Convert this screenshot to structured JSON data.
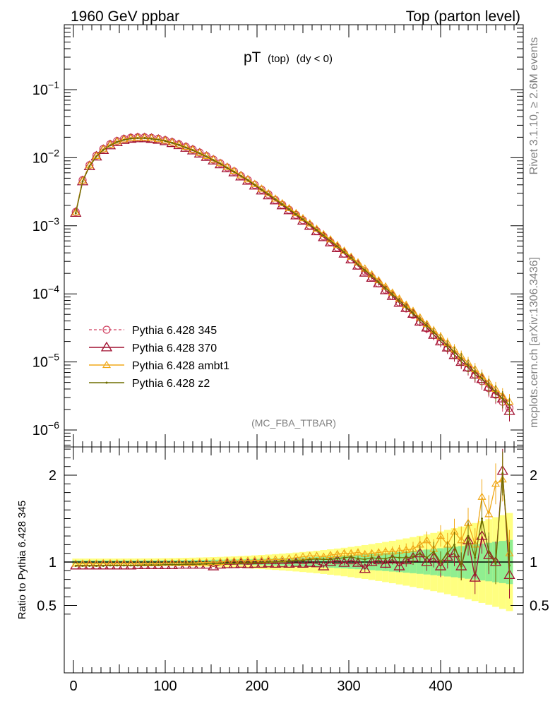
{
  "header": {
    "left": "1960 GeV ppbar",
    "right": "Top (parton level)"
  },
  "plot_title": {
    "main": "pT",
    "sub1": "(top)",
    "sub2": "(dy < 0)"
  },
  "side_labels": {
    "rivet": "Rivet 3.1.10, ≥ 2.6M events",
    "mcplots": "mcplots.cern.ch [arXiv:1306.3436]"
  },
  "analysis_tag": "(MC_FBA_TTBAR)",
  "colors": {
    "p345": "#d04060",
    "p370": "#a01030",
    "ambt1": "#f0a818",
    "z2": "#6e6e00",
    "band_yellow": "#ffff80",
    "band_green": "#90ee90"
  },
  "chart_data": [
    {
      "type": "scatter",
      "panel": "main",
      "log_y": true,
      "xlim": [
        -10,
        490
      ],
      "ylim": [
        5e-07,
        1
      ],
      "y_ticks": [
        "10^-6",
        "10^-5",
        "10^-4",
        "10^-3",
        "10^-2",
        "10^-1"
      ],
      "legend_placement": "bottom-left",
      "x": [
        2.5,
        10,
        17.5,
        25,
        32.5,
        40,
        47.5,
        55,
        62.5,
        70,
        77.5,
        85,
        92.5,
        100,
        107.5,
        115,
        122.5,
        130,
        137.5,
        145,
        152.5,
        160,
        167.5,
        175,
        182.5,
        190,
        197.5,
        205,
        212.5,
        220,
        227.5,
        235,
        242.5,
        250,
        257.5,
        265,
        272.5,
        280,
        287.5,
        295,
        302.5,
        310,
        317.5,
        325,
        332.5,
        340,
        347.5,
        355,
        362.5,
        370,
        377.5,
        385,
        392.5,
        400,
        407.5,
        415,
        422.5,
        430,
        437.5,
        445,
        452.5,
        460,
        467.5,
        475
      ],
      "series": [
        {
          "name": "Pythia 6.428 345",
          "values": [
            0.0016,
            0.0047,
            0.0078,
            0.0108,
            0.0135,
            0.0158,
            0.0176,
            0.0189,
            0.0197,
            0.02,
            0.02,
            0.0196,
            0.019,
            0.0181,
            0.017,
            0.0158,
            0.0145,
            0.0132,
            0.0119,
            0.0106,
            0.0094,
            0.0083,
            0.0072,
            0.0063,
            0.0054,
            0.0047,
            0.004,
            0.0034,
            0.0029,
            0.0024,
            0.00204,
            0.00172,
            0.00145,
            0.00121,
            0.00101,
            0.00084,
            0.0007,
            0.00058,
            0.00048,
            0.00039,
            0.00032,
            0.00026,
            0.000215,
            0.000175,
            0.000142,
            0.000115,
            9.3e-05,
            7.5e-05,
            6.1e-05,
            4.9e-05,
            3.9e-05,
            3.1e-05,
            2.5e-05,
            2e-05,
            1.6e-05,
            1.28e-05,
            1.02e-05,
            8.1e-06,
            6.5e-06,
            5.2e-06,
            4.1e-06,
            3.3e-06,
            2.6e-06,
            2.1e-06
          ]
        },
        {
          "name": "Pythia 6.428 370",
          "values": [
            0.00155,
            0.0045,
            0.0075,
            0.0104,
            0.013,
            0.0152,
            0.0169,
            0.0182,
            0.019,
            0.0193,
            0.0193,
            0.0189,
            0.0183,
            0.0175,
            0.0164,
            0.0153,
            0.014,
            0.0128,
            0.0115,
            0.0103,
            0.0091,
            0.008,
            0.007,
            0.0061,
            0.0053,
            0.0046,
            0.0039,
            0.0033,
            0.0028,
            0.00236,
            0.002,
            0.00169,
            0.00142,
            0.00119,
            0.001,
            0.00083,
            0.00068,
            0.00057,
            0.00047,
            0.00039,
            0.00032,
            0.00026,
            0.000205,
            0.000172,
            0.000143,
            0.000113,
            9.3e-05,
            7.4e-05,
            6.2e-05,
            5.1e-05,
            3.9e-05,
            3.2e-05,
            2.5e-05,
            2e-05,
            1.63e-05,
            1.26e-05,
            1e-05,
            8.3e-06,
            6.5e-06,
            5.6e-06,
            4.3e-06,
            3.4e-06,
            2.9e-06,
            1.9e-06
          ]
        },
        {
          "name": "Pythia 6.428 ambt1",
          "values": [
            0.00157,
            0.0046,
            0.0077,
            0.0106,
            0.0133,
            0.0155,
            0.0173,
            0.0186,
            0.0194,
            0.0197,
            0.0197,
            0.0193,
            0.0187,
            0.0179,
            0.0168,
            0.0156,
            0.0144,
            0.0131,
            0.0118,
            0.0106,
            0.0094,
            0.0083,
            0.0073,
            0.0064,
            0.0055,
            0.0048,
            0.0041,
            0.0035,
            0.003,
            0.0025,
            0.00214,
            0.00181,
            0.00153,
            0.00129,
            0.00108,
            0.0009,
            0.00075,
            0.00063,
            0.00052,
            0.00043,
            0.00035,
            0.00029,
            0.000235,
            0.000193,
            0.000158,
            0.000128,
            0.000104,
            8.5e-05,
            6.9e-05,
            5.6e-05,
            4.5e-05,
            3.6e-05,
            2.9e-05,
            2.35e-05,
            1.9e-05,
            1.52e-05,
            1.21e-05,
            9.7e-06,
            7.8e-06,
            6.2e-06,
            5e-06,
            4e-06,
            3.2e-06,
            2.6e-06
          ]
        },
        {
          "name": "Pythia 6.428 z2",
          "values": [
            0.00153,
            0.0045,
            0.0075,
            0.0104,
            0.013,
            0.0152,
            0.017,
            0.0183,
            0.0191,
            0.0194,
            0.0194,
            0.019,
            0.0184,
            0.0176,
            0.0165,
            0.0154,
            0.0141,
            0.0129,
            0.0116,
            0.0104,
            0.0092,
            0.0082,
            0.0071,
            0.0062,
            0.0054,
            0.0047,
            0.004,
            0.0034,
            0.0029,
            0.00245,
            0.00207,
            0.00175,
            0.00148,
            0.00124,
            0.00104,
            0.00087,
            0.00072,
            0.0006,
            0.0005,
            0.00041,
            0.00034,
            0.00027,
            0.000222,
            0.000183,
            0.000148,
            0.000121,
            9.8e-05,
            7.9e-05,
            6.4e-05,
            5.2e-05,
            4.2e-05,
            3.4e-05,
            2.7e-05,
            2.16e-05,
            1.74e-05,
            1.39e-05,
            1.11e-05,
            8.8e-06,
            7e-06,
            5.7e-06,
            4.5e-06,
            3.6e-06,
            2.9e-06,
            2.3e-06
          ]
        }
      ]
    },
    {
      "type": "scatter",
      "panel": "ratio",
      "ylabel": "Ratio to Pythia 6.428 345",
      "xlim": [
        -10,
        490
      ],
      "ylim": [
        0.35,
        2.35
      ],
      "x_ticks": [
        0,
        100,
        200,
        300,
        400
      ],
      "y_ticks": [
        0.5,
        1,
        2
      ],
      "reference_line": 1,
      "x": [
        2.5,
        10,
        17.5,
        25,
        32.5,
        40,
        47.5,
        55,
        62.5,
        70,
        77.5,
        85,
        92.5,
        100,
        107.5,
        115,
        122.5,
        130,
        137.5,
        145,
        152.5,
        160,
        167.5,
        175,
        182.5,
        190,
        197.5,
        205,
        212.5,
        220,
        227.5,
        235,
        242.5,
        250,
        257.5,
        265,
        272.5,
        280,
        287.5,
        295,
        302.5,
        310,
        317.5,
        325,
        332.5,
        340,
        347.5,
        355,
        362.5,
        370,
        377.5,
        385,
        392.5,
        400,
        407.5,
        415,
        422.5,
        430,
        437.5,
        445,
        452.5,
        460,
        467.5,
        475
      ],
      "series": [
        {
          "name": "Pythia 6.428 370",
          "values": [
            0.96,
            0.96,
            0.96,
            0.96,
            0.96,
            0.96,
            0.96,
            0.96,
            0.96,
            0.965,
            0.965,
            0.965,
            0.965,
            0.965,
            0.965,
            0.97,
            0.97,
            0.97,
            0.97,
            0.97,
            0.95,
            0.97,
            0.975,
            0.975,
            0.98,
            0.975,
            0.98,
            0.98,
            0.985,
            0.98,
            0.985,
            0.98,
            0.99,
            0.98,
            0.99,
            0.985,
            0.95,
            1.0,
            1.02,
            0.99,
            1.02,
            0.99,
            0.92,
            1.0,
            1.02,
            0.98,
            1.03,
            0.95,
            1.02,
            1.05,
            1.1,
            1.0,
            1.05,
            0.95,
            1.06,
            1.1,
            0.95,
            1.25,
            0.82,
            1.3,
            1.08,
            1.0,
            2.05,
            0.85
          ]
        },
        {
          "name": "Pythia 6.428 ambt1",
          "values": [
            0.98,
            0.98,
            0.985,
            0.98,
            0.985,
            0.985,
            0.985,
            0.985,
            0.985,
            0.985,
            0.985,
            0.985,
            0.985,
            0.99,
            0.99,
            0.99,
            0.99,
            0.99,
            0.995,
            0.995,
            1.0,
            1.0,
            1.01,
            1.01,
            1.015,
            1.015,
            1.02,
            1.02,
            1.025,
            1.03,
            1.03,
            1.04,
            1.05,
            1.06,
            1.07,
            1.07,
            1.06,
            1.08,
            1.09,
            1.1,
            1.1,
            1.11,
            1.09,
            1.1,
            1.11,
            1.12,
            1.12,
            1.13,
            1.14,
            1.15,
            1.2,
            1.25,
            1.15,
            1.3,
            1.2,
            1.35,
            1.25,
            1.45,
            1.2,
            1.75,
            1.55,
            1.9,
            1.95,
            1.1
          ]
        },
        {
          "name": "Pythia 6.428 z2",
          "values": [
            0.955,
            0.955,
            0.955,
            0.955,
            0.955,
            0.96,
            0.96,
            0.96,
            0.96,
            0.96,
            0.965,
            0.965,
            0.965,
            0.97,
            0.97,
            0.97,
            0.975,
            0.975,
            0.975,
            0.98,
            0.98,
            0.985,
            0.985,
            0.985,
            0.99,
            0.99,
            0.99,
            0.995,
            1.0,
            1.0,
            1.01,
            1.01,
            1.02,
            1.02,
            1.03,
            1.035,
            1.03,
            1.03,
            1.04,
            1.05,
            1.06,
            1.04,
            1.03,
            1.05,
            1.04,
            1.04,
            1.06,
            1.05,
            1.05,
            1.06,
            1.1,
            1.05,
            1.12,
            1.0,
            1.1,
            1.2,
            0.95,
            1.3,
            1.05,
            1.5,
            1.12,
            0.98,
            2.02,
            0.96
          ]
        }
      ]
    }
  ]
}
